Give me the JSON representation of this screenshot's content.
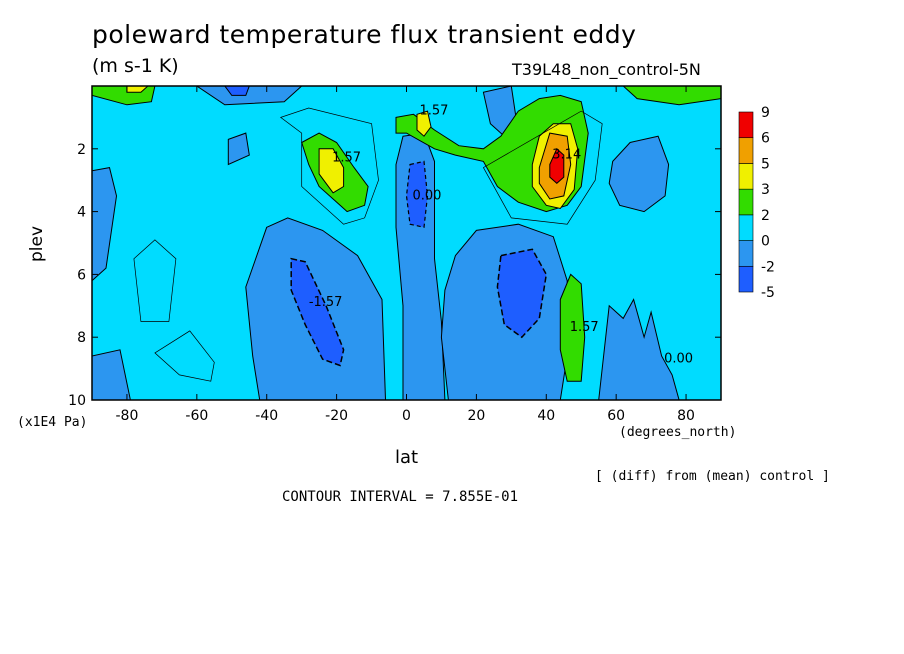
{
  "header": {
    "title": "poleward temperature flux transient eddy",
    "units": "(m s-1 K)",
    "run": "T39L48_non_control-5N"
  },
  "footer": {
    "xunit": "(degrees_north)",
    "yunit": "(x1E4 Pa)",
    "diff_note": "[ (diff) from (mean) control ]",
    "contour_interval": "CONTOUR INTERVAL = 7.855E-01"
  },
  "colors": {
    "c_lt_-5": "#1e5eff",
    "c_-5_-2": "#2c96f0",
    "c_-2_0": "#00c8ff",
    "c_0_2": "#00dcff",
    "c_2_3": "#32dc00",
    "c_3_5": "#f0f000",
    "c_5_6": "#f0a000",
    "c_6_9": "#f00000"
  },
  "chart_data": {
    "type": "heatmap",
    "title": "poleward temperature flux transient eddy",
    "subtitle": "(m s-1 K)",
    "xlabel": "lat",
    "ylabel": "plev",
    "xlim": [
      -90,
      90
    ],
    "ylim": [
      10,
      0
    ],
    "x_ticks": [
      -80,
      -60,
      -40,
      -20,
      0,
      20,
      40,
      60,
      80
    ],
    "y_ticks": [
      2,
      4,
      6,
      8,
      10
    ],
    "colorbar": {
      "levels": [
        -5,
        -2,
        0,
        2,
        3,
        5,
        6,
        9
      ],
      "labels": [
        "9",
        "6",
        "5",
        "3",
        "2",
        "0",
        "-2",
        "-5"
      ],
      "colors": [
        "#1e5eff",
        "#2c96f0",
        "#00dcff",
        "#32dc00",
        "#f0f000",
        "#f0a000",
        "#f00000"
      ]
    },
    "contour_interval": 0.7855,
    "contour_labels": [
      "0.00",
      "1.57",
      "-1.57",
      "3.14"
    ],
    "features": [
      {
        "lat": 43,
        "plev": 2.5,
        "value": 8,
        "label": "3.14"
      },
      {
        "lat": -20,
        "plev": 2.6,
        "value": 3.5,
        "label": "1.57"
      },
      {
        "lat": 5,
        "plev": 1.1,
        "value": 2.5,
        "label": "1.57"
      },
      {
        "lat": 48,
        "plev": 8.0,
        "value": 2.2,
        "label": "1.57"
      },
      {
        "lat": -26,
        "plev": 7.2,
        "value": -3.0,
        "label": "-1.57"
      },
      {
        "lat": 32,
        "plev": 6.5,
        "value": -3.0,
        "label": ""
      },
      {
        "lat": 3,
        "plev": 3.8,
        "value": -2.0,
        "label": "0.00"
      },
      {
        "lat": -85,
        "plev": 3.5,
        "value": -1.0,
        "label": ""
      },
      {
        "lat": 70,
        "plev": 2.8,
        "value": -1.0,
        "label": ""
      },
      {
        "lat": 75,
        "plev": 9.0,
        "value": -1.0,
        "label": "0.00"
      }
    ]
  }
}
